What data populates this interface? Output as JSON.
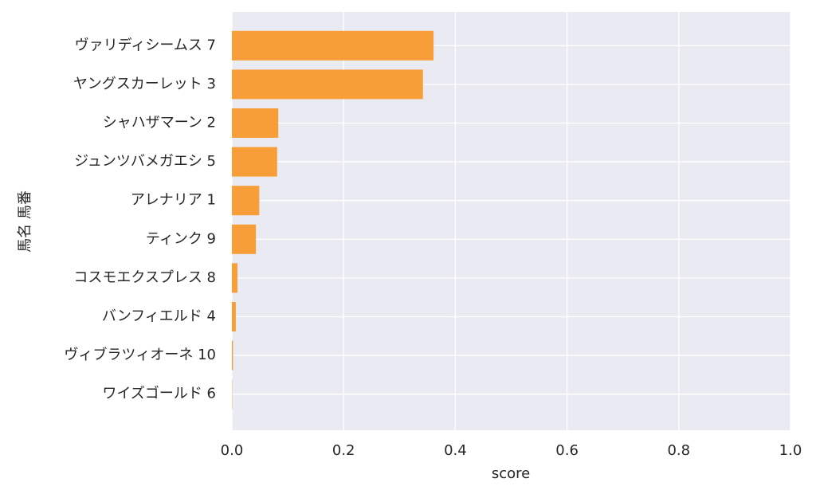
{
  "chart_data": {
    "type": "barh",
    "x_label": "score",
    "y_label": "馬名 馬番",
    "categories": [
      "ヴァリディシームス 7",
      "ヤングスカーレット 3",
      "シャハザマーン 2",
      "ジュンツバメガエシ 5",
      "アレナリア 1",
      "ティンク 9",
      "コスモエクスプレス 8",
      "バンフィエルド 4",
      "ヴィブラツィオーネ 10",
      "ワイズゴールド 6"
    ],
    "values": [
      0.361,
      0.342,
      0.083,
      0.081,
      0.049,
      0.043,
      0.01,
      0.007,
      0.002,
      0.0005
    ],
    "color": "#f99a2e",
    "xlim": [
      0,
      1.0
    ],
    "xticks": [
      {
        "value": 0,
        "label": "0.0"
      },
      {
        "value": 0.2,
        "label": "0.2"
      },
      {
        "value": 0.4,
        "label": "0.4"
      },
      {
        "value": 0.6,
        "label": "0.6"
      },
      {
        "value": 0.8,
        "label": "0.8"
      },
      {
        "value": 1.0,
        "label": "1.0"
      }
    ],
    "grid": true
  }
}
